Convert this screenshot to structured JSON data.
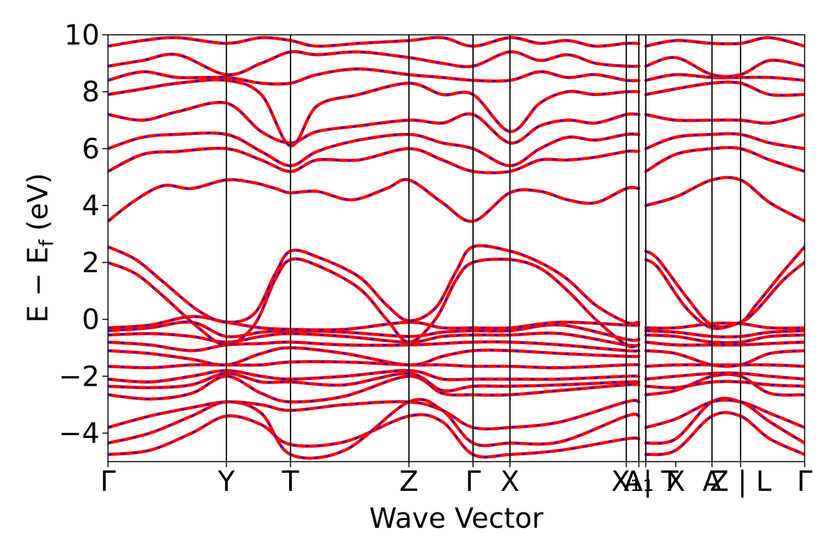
{
  "chart_data": {
    "type": "line",
    "title": "",
    "xlabel": "Wave Vector",
    "ylabel": "E − E",
    "ylabel_subscript": "f",
    "ylabel_unit": " (eV)",
    "ylim": [
      -5,
      10
    ],
    "yticks": [
      -4,
      -2,
      0,
      2,
      4,
      6,
      8,
      10
    ],
    "ytick_labels": [
      "−4",
      "−2",
      "0",
      "2",
      "4",
      "6",
      "8",
      "10"
    ],
    "xlim": [
      0,
      1
    ],
    "kpath_ticks": [
      {
        "label": "Γ",
        "pos": 0.0
      },
      {
        "label": "Y",
        "pos": 0.17
      },
      {
        "label": "T",
        "pos": 0.262
      },
      {
        "label": "Z",
        "pos": 0.432
      },
      {
        "label": "Γ",
        "pos": 0.524
      },
      {
        "label": "X",
        "pos": 0.577
      },
      {
        "label": "X₁",
        "pos": 0.744
      },
      {
        "label": "A₁",
        "pos": 0.762
      },
      {
        "label": "| T",
        "pos": 0.772
      },
      {
        "label": "X",
        "pos": 0.815
      },
      {
        "label": "A",
        "pos": 0.867
      },
      {
        "label": "Z | L",
        "pos": 0.908
      },
      {
        "label": "Γ",
        "pos": 1.0
      }
    ],
    "kpath_vlines": [
      0.17,
      0.262,
      0.432,
      0.524,
      0.577,
      0.744,
      0.762,
      0.772,
      0.867,
      0.908
    ],
    "segment_breaks": [
      0.762,
      0.772
    ],
    "series": [
      {
        "name": "",
        "color": "#ff0000",
        "dash": "solid",
        "width": 4.5
      },
      {
        "name": "",
        "color": "#0000ff",
        "dash": "dashed",
        "width": 2
      }
    ],
    "bands": [
      {
        "x": [
          0,
          0.06,
          0.12,
          0.17,
          0.22,
          0.262,
          0.34,
          0.432,
          0.48,
          0.524,
          0.577,
          0.65,
          0.744,
          0.762,
          0.772,
          0.815,
          0.867,
          0.908,
          0.95,
          1.0
        ],
        "y": [
          -4.75,
          -4.6,
          -4.0,
          -3.4,
          -3.7,
          -4.4,
          -4.3,
          -3.4,
          -3.6,
          -4.75,
          -4.75,
          -4.6,
          -4.2,
          -4.2,
          -4.75,
          -4.6,
          -3.4,
          -3.4,
          -4.2,
          -4.75
        ]
      },
      {
        "x": [
          0,
          0.06,
          0.12,
          0.17,
          0.22,
          0.262,
          0.34,
          0.432,
          0.48,
          0.524,
          0.577,
          0.65,
          0.744,
          0.762,
          0.772,
          0.815,
          0.867,
          0.908,
          0.95,
          1.0
        ],
        "y": [
          -4.35,
          -4.0,
          -3.4,
          -2.9,
          -3.3,
          -4.75,
          -4.6,
          -2.9,
          -3.2,
          -4.35,
          -4.35,
          -4.3,
          -3.4,
          -3.4,
          -4.35,
          -4.2,
          -2.9,
          -2.9,
          -3.6,
          -4.35
        ]
      },
      {
        "x": [
          0,
          0.06,
          0.12,
          0.17,
          0.22,
          0.262,
          0.34,
          0.432,
          0.48,
          0.524,
          0.577,
          0.65,
          0.744,
          0.762,
          0.772,
          0.815,
          0.867,
          0.908,
          0.95,
          1.0
        ],
        "y": [
          -3.8,
          -3.4,
          -3.1,
          -2.9,
          -3.0,
          -3.2,
          -3.0,
          -2.9,
          -3.2,
          -3.8,
          -3.8,
          -3.6,
          -2.9,
          -2.9,
          -3.8,
          -3.5,
          -2.9,
          -2.9,
          -3.3,
          -3.8
        ]
      },
      {
        "x": [
          0,
          0.06,
          0.12,
          0.17,
          0.22,
          0.262,
          0.34,
          0.432,
          0.48,
          0.524,
          0.577,
          0.65,
          0.744,
          0.762,
          0.772,
          0.815,
          0.867,
          0.908,
          0.95,
          1.0
        ],
        "y": [
          -2.65,
          -2.8,
          -2.6,
          -2.0,
          -2.6,
          -2.9,
          -2.7,
          -2.0,
          -2.6,
          -2.65,
          -2.65,
          -2.5,
          -2.3,
          -2.3,
          -2.65,
          -2.5,
          -2.0,
          -2.0,
          -2.6,
          -2.65
        ]
      },
      {
        "x": [
          0,
          0.06,
          0.12,
          0.17,
          0.22,
          0.262,
          0.34,
          0.432,
          0.48,
          0.524,
          0.577,
          0.65,
          0.744,
          0.762,
          0.772,
          0.815,
          0.867,
          0.908,
          0.95,
          1.0
        ],
        "y": [
          -2.35,
          -2.4,
          -2.3,
          -1.9,
          -2.2,
          -2.2,
          -2.3,
          -1.9,
          -2.5,
          -2.35,
          -2.35,
          -2.3,
          -2.2,
          -2.2,
          -2.35,
          -2.4,
          -2.2,
          -2.2,
          -2.3,
          -2.35
        ]
      },
      {
        "x": [
          0,
          0.06,
          0.12,
          0.17,
          0.22,
          0.262,
          0.34,
          0.432,
          0.48,
          0.524,
          0.577,
          0.65,
          0.744,
          0.762,
          0.772,
          0.815,
          0.867,
          0.908,
          0.95,
          1.0
        ],
        "y": [
          -2.1,
          -2.2,
          -2.0,
          -1.8,
          -2.0,
          -2.1,
          -2.0,
          -1.8,
          -2.1,
          -2.1,
          -2.1,
          -2.1,
          -2.0,
          -2.0,
          -2.1,
          -2.0,
          -1.9,
          -1.9,
          -2.0,
          -2.1
        ]
      },
      {
        "x": [
          0,
          0.06,
          0.12,
          0.17,
          0.22,
          0.262,
          0.34,
          0.432,
          0.48,
          0.524,
          0.577,
          0.65,
          0.744,
          0.762,
          0.772,
          0.815,
          0.867,
          0.908,
          0.95,
          1.0
        ],
        "y": [
          -1.65,
          -1.7,
          -1.6,
          -1.6,
          -1.6,
          -1.5,
          -1.5,
          -1.6,
          -1.6,
          -1.65,
          -1.65,
          -1.7,
          -1.6,
          -1.6,
          -1.65,
          -1.6,
          -1.6,
          -1.6,
          -1.6,
          -1.65
        ]
      },
      {
        "x": [
          0,
          0.06,
          0.12,
          0.17,
          0.22,
          0.262,
          0.34,
          0.432,
          0.48,
          0.524,
          0.577,
          0.65,
          0.744,
          0.762,
          0.772,
          0.815,
          0.867,
          0.908,
          0.95,
          1.0
        ],
        "y": [
          -1.1,
          -1.2,
          -1.4,
          -1.6,
          -1.2,
          -1.0,
          -1.2,
          -1.6,
          -1.3,
          -1.1,
          -1.1,
          -1.2,
          -1.3,
          -1.3,
          -1.1,
          -1.2,
          -1.6,
          -1.6,
          -1.2,
          -1.1
        ]
      },
      {
        "x": [
          0,
          0.06,
          0.12,
          0.17,
          0.22,
          0.262,
          0.34,
          0.432,
          0.48,
          0.524,
          0.577,
          0.65,
          0.744,
          0.762,
          0.772,
          0.815,
          0.867,
          0.908,
          0.95,
          1.0
        ],
        "y": [
          -0.8,
          -0.9,
          -1.1,
          -0.9,
          -0.85,
          -0.8,
          -0.9,
          -0.9,
          -0.85,
          -0.8,
          -0.8,
          -0.9,
          -1.1,
          -1.1,
          -0.8,
          -0.9,
          -0.9,
          -0.9,
          -0.85,
          -0.8
        ]
      },
      {
        "x": [
          0,
          0.06,
          0.12,
          0.17,
          0.22,
          0.262,
          0.34,
          0.432,
          0.48,
          0.524,
          0.577,
          0.65,
          0.744,
          0.762,
          0.772,
          0.815,
          0.867,
          0.908,
          0.95,
          1.0
        ],
        "y": [
          -0.55,
          -0.5,
          -0.6,
          -0.8,
          -0.6,
          -0.5,
          -0.6,
          -0.8,
          -0.6,
          -0.55,
          -0.55,
          -0.5,
          -0.9,
          -0.9,
          -0.55,
          -0.6,
          -0.8,
          -0.8,
          -0.6,
          -0.55
        ]
      },
      {
        "x": [
          0,
          0.06,
          0.12,
          0.17,
          0.22,
          0.262,
          0.34,
          0.432,
          0.48,
          0.524,
          0.577,
          0.65,
          0.744,
          0.762,
          0.772,
          0.815,
          0.867,
          0.908,
          0.95,
          1.0
        ],
        "y": [
          -0.4,
          -0.3,
          -0.1,
          -0.6,
          -0.45,
          -0.4,
          -0.45,
          -0.6,
          -0.45,
          -0.4,
          -0.4,
          -0.2,
          -0.7,
          -0.7,
          -0.4,
          -0.45,
          -0.6,
          -0.6,
          -0.45,
          -0.4
        ]
      },
      {
        "x": [
          0,
          0.06,
          0.12,
          0.17,
          0.22,
          0.262,
          0.34,
          0.432,
          0.48,
          0.524,
          0.577,
          0.65,
          0.744,
          0.762,
          0.772,
          0.815,
          0.867,
          0.908,
          0.95,
          1.0
        ],
        "y": [
          -0.3,
          -0.2,
          0.1,
          -0.1,
          -0.3,
          -0.35,
          -0.35,
          -0.1,
          -0.3,
          -0.3,
          -0.3,
          -0.1,
          -0.2,
          -0.2,
          -0.3,
          -0.3,
          -0.15,
          -0.15,
          -0.3,
          -0.3
        ]
      },
      {
        "x": [
          0,
          0.04,
          0.08,
          0.13,
          0.17,
          0.21,
          0.24,
          0.262,
          0.3,
          0.36,
          0.4,
          0.432,
          0.47,
          0.5,
          0.524,
          0.577,
          0.62,
          0.66,
          0.7,
          0.744,
          0.762,
          0.772,
          0.79,
          0.83,
          0.867,
          0.908,
          0.93,
          0.97,
          1.0
        ],
        "y": [
          2.0,
          1.6,
          0.8,
          -0.3,
          -0.9,
          -0.2,
          1.4,
          2.1,
          1.9,
          1.1,
          0.0,
          -0.8,
          0.0,
          1.4,
          2.0,
          2.1,
          1.8,
          1.0,
          0.0,
          -0.9,
          -0.9,
          2.1,
          1.8,
          0.4,
          -0.3,
          -0.1,
          0.3,
          1.4,
          2.0
        ]
      },
      {
        "x": [
          0,
          0.04,
          0.08,
          0.13,
          0.17,
          0.21,
          0.24,
          0.262,
          0.3,
          0.36,
          0.4,
          0.432,
          0.47,
          0.5,
          0.524,
          0.577,
          0.62,
          0.66,
          0.7,
          0.744,
          0.762,
          0.772,
          0.79,
          0.83,
          0.867,
          0.908,
          0.93,
          0.97,
          1.0
        ],
        "y": [
          2.55,
          2.1,
          1.3,
          0.3,
          -0.1,
          0.2,
          1.6,
          2.4,
          2.2,
          1.5,
          0.5,
          -0.05,
          0.4,
          1.7,
          2.55,
          2.4,
          2.0,
          1.4,
          0.5,
          -0.1,
          -0.1,
          2.4,
          2.1,
          0.8,
          -0.2,
          -0.1,
          0.5,
          1.7,
          2.55
        ]
      },
      {
        "x": [
          0,
          0.04,
          0.08,
          0.12,
          0.17,
          0.21,
          0.24,
          0.262,
          0.3,
          0.35,
          0.4,
          0.432,
          0.48,
          0.524,
          0.577,
          0.62,
          0.66,
          0.7,
          0.744,
          0.762,
          0.772,
          0.815,
          0.867,
          0.908,
          0.95,
          1.0
        ],
        "y": [
          3.45,
          4.2,
          4.7,
          4.6,
          4.9,
          4.8,
          4.6,
          4.45,
          4.5,
          4.2,
          4.6,
          4.9,
          4.1,
          3.45,
          4.45,
          4.5,
          4.2,
          4.1,
          4.6,
          4.6,
          4.0,
          4.3,
          4.9,
          4.9,
          4.1,
          3.45
        ]
      },
      {
        "x": [
          0,
          0.05,
          0.1,
          0.17,
          0.22,
          0.262,
          0.3,
          0.36,
          0.432,
          0.48,
          0.524,
          0.577,
          0.62,
          0.66,
          0.7,
          0.744,
          0.762,
          0.772,
          0.815,
          0.867,
          0.908,
          0.95,
          1.0
        ],
        "y": [
          5.2,
          5.8,
          5.9,
          6.0,
          5.6,
          5.2,
          5.6,
          5.6,
          6.0,
          5.6,
          5.2,
          5.2,
          5.6,
          5.6,
          5.7,
          5.9,
          5.9,
          5.2,
          5.8,
          6.0,
          6.0,
          5.6,
          5.2
        ]
      },
      {
        "x": [
          0,
          0.05,
          0.1,
          0.17,
          0.22,
          0.262,
          0.3,
          0.36,
          0.432,
          0.48,
          0.524,
          0.577,
          0.62,
          0.66,
          0.7,
          0.744,
          0.762,
          0.772,
          0.815,
          0.867,
          0.908,
          0.95,
          1.0
        ],
        "y": [
          6.0,
          6.4,
          6.5,
          6.5,
          5.9,
          5.4,
          5.9,
          6.3,
          6.5,
          6.2,
          6.0,
          5.4,
          6.0,
          6.4,
          6.3,
          6.5,
          6.5,
          6.0,
          6.4,
          6.5,
          6.5,
          6.2,
          6.0
        ]
      },
      {
        "x": [
          0,
          0.05,
          0.1,
          0.17,
          0.22,
          0.262,
          0.3,
          0.36,
          0.432,
          0.48,
          0.524,
          0.577,
          0.62,
          0.66,
          0.7,
          0.744,
          0.762,
          0.772,
          0.815,
          0.867,
          0.908,
          0.95,
          1.0
        ],
        "y": [
          7.2,
          7.0,
          7.3,
          7.6,
          6.6,
          6.2,
          6.6,
          6.8,
          7.0,
          6.9,
          7.2,
          6.2,
          6.8,
          7.0,
          6.9,
          7.2,
          7.2,
          7.2,
          7.0,
          7.0,
          7.0,
          6.9,
          7.2
        ]
      },
      {
        "x": [
          0,
          0.05,
          0.1,
          0.17,
          0.22,
          0.262,
          0.3,
          0.36,
          0.432,
          0.48,
          0.524,
          0.577,
          0.62,
          0.66,
          0.7,
          0.744,
          0.762,
          0.772,
          0.815,
          0.867,
          0.908,
          0.95,
          1.0
        ],
        "y": [
          7.9,
          8.1,
          8.3,
          8.4,
          7.9,
          6.1,
          7.5,
          7.9,
          8.3,
          7.9,
          7.9,
          6.6,
          7.6,
          8.0,
          7.9,
          8.0,
          8.0,
          7.9,
          8.1,
          8.3,
          8.3,
          7.9,
          7.9
        ]
      },
      {
        "x": [
          0,
          0.05,
          0.1,
          0.17,
          0.22,
          0.262,
          0.3,
          0.36,
          0.432,
          0.48,
          0.524,
          0.577,
          0.62,
          0.66,
          0.7,
          0.744,
          0.762,
          0.772,
          0.815,
          0.867,
          0.908,
          0.95,
          1.0
        ],
        "y": [
          8.4,
          8.7,
          8.5,
          8.5,
          8.3,
          8.3,
          8.6,
          8.8,
          8.6,
          8.5,
          8.4,
          8.4,
          8.7,
          8.5,
          8.6,
          8.4,
          8.4,
          8.4,
          8.6,
          8.5,
          8.5,
          8.5,
          8.4
        ]
      },
      {
        "x": [
          0,
          0.05,
          0.1,
          0.17,
          0.22,
          0.262,
          0.3,
          0.36,
          0.432,
          0.48,
          0.524,
          0.577,
          0.62,
          0.66,
          0.7,
          0.744,
          0.762,
          0.772,
          0.815,
          0.867,
          0.908,
          0.95,
          1.0
        ],
        "y": [
          8.9,
          9.1,
          9.3,
          8.6,
          9.0,
          9.4,
          9.3,
          9.4,
          9.2,
          9.0,
          8.9,
          9.4,
          9.1,
          9.3,
          9.0,
          8.9,
          8.9,
          8.9,
          9.2,
          8.6,
          8.6,
          9.1,
          8.9
        ]
      },
      {
        "x": [
          0,
          0.05,
          0.1,
          0.17,
          0.22,
          0.262,
          0.3,
          0.36,
          0.432,
          0.48,
          0.524,
          0.577,
          0.62,
          0.66,
          0.7,
          0.744,
          0.762,
          0.772,
          0.815,
          0.867,
          0.908,
          0.95,
          1.0
        ],
        "y": [
          9.6,
          9.8,
          9.9,
          9.7,
          9.9,
          9.8,
          9.6,
          9.7,
          9.8,
          9.9,
          9.6,
          9.9,
          9.7,
          9.8,
          9.6,
          9.7,
          9.7,
          9.6,
          9.8,
          9.7,
          9.7,
          9.9,
          9.6
        ]
      }
    ]
  }
}
